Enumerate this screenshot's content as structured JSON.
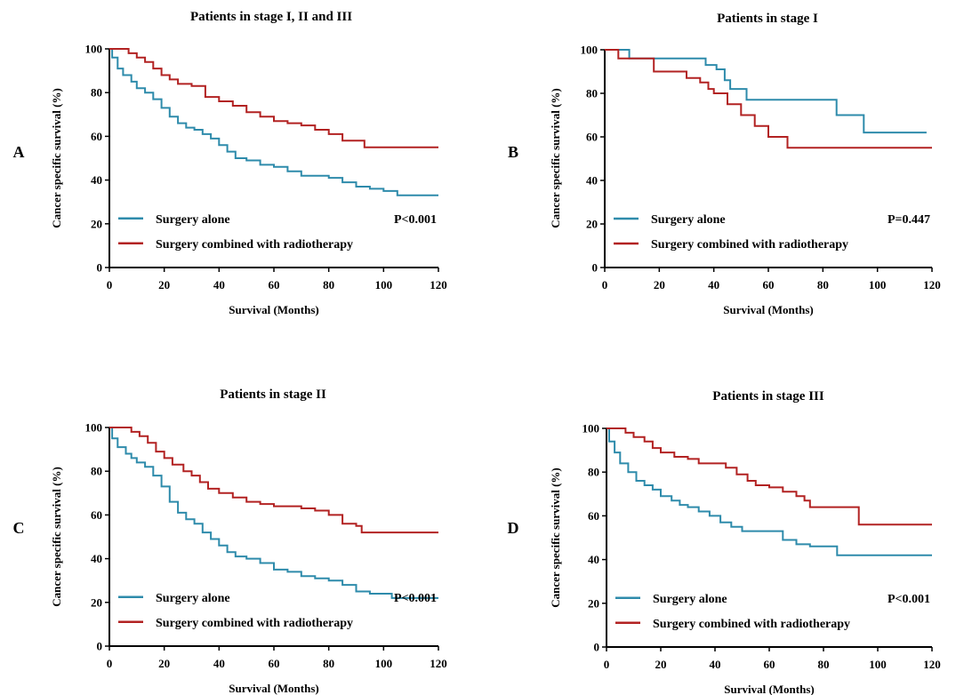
{
  "colors": {
    "surgery_alone": "#2e8bab",
    "surgery_radiotherapy": "#b22222",
    "axis": "#000000"
  },
  "chart_data": [
    {
      "type": "line",
      "panel_label": "A",
      "title": "Patients in stage I, II and III",
      "xlabel": "Survival (Months)",
      "ylabel": "Cancer specific survival (%)",
      "xlim": [
        0,
        120
      ],
      "ylim": [
        0,
        100
      ],
      "xticks": [
        "0",
        "20",
        "40",
        "60",
        "80",
        "100",
        "120"
      ],
      "yticks": [
        "0",
        "20",
        "40",
        "60",
        "80",
        "100"
      ],
      "p_value": "P<0.001",
      "legend_placement": "bottom-left",
      "series": [
        {
          "name": "Surgery alone",
          "color": "#2e8bab",
          "x": [
            0,
            1,
            3,
            5,
            8,
            10,
            13,
            16,
            19,
            22,
            25,
            28,
            31,
            34,
            37,
            40,
            43,
            46,
            50,
            55,
            60,
            65,
            70,
            75,
            80,
            85,
            90,
            95,
            100,
            105,
            110,
            120
          ],
          "y": [
            100,
            96,
            91,
            88,
            85,
            82,
            80,
            77,
            73,
            69,
            66,
            64,
            63,
            61,
            59,
            56,
            53,
            50,
            49,
            47,
            46,
            44,
            42,
            42,
            41,
            39,
            37,
            36,
            35,
            33,
            33,
            33
          ]
        },
        {
          "name": "Surgery combined with radiotherapy",
          "color": "#b22222",
          "x": [
            0,
            4,
            7,
            10,
            13,
            16,
            19,
            22,
            25,
            30,
            35,
            40,
            45,
            50,
            55,
            60,
            65,
            70,
            75,
            80,
            85,
            90,
            93,
            100,
            110,
            120
          ],
          "y": [
            100,
            100,
            98,
            96,
            94,
            91,
            88,
            86,
            84,
            83,
            78,
            76,
            74,
            71,
            69,
            67,
            66,
            65,
            63,
            61,
            58,
            58,
            55,
            55,
            55,
            55
          ]
        }
      ]
    },
    {
      "type": "line",
      "panel_label": "B",
      "title": "Patients in stage I",
      "xlabel": "Survival (Months)",
      "ylabel": "Cancer specific survival (%)",
      "xlim": [
        0,
        120
      ],
      "ylim": [
        0,
        100
      ],
      "xticks": [
        "0",
        "20",
        "40",
        "60",
        "80",
        "100",
        "120"
      ],
      "yticks": [
        "0",
        "20",
        "40",
        "60",
        "80",
        "100"
      ],
      "p_value": "P=0.447",
      "legend_placement": "bottom-left",
      "series": [
        {
          "name": "Surgery alone",
          "color": "#2e8bab",
          "x": [
            0,
            8,
            9,
            33,
            37,
            41,
            44,
            46,
            51,
            52,
            84,
            85,
            94,
            95,
            118
          ],
          "y": [
            100,
            100,
            96,
            96,
            93,
            91,
            86,
            82,
            82,
            77,
            77,
            70,
            70,
            62,
            62
          ]
        },
        {
          "name": "Surgery combined with radiotherapy",
          "color": "#b22222",
          "x": [
            0,
            3,
            5,
            17,
            18,
            30,
            35,
            38,
            40,
            45,
            50,
            55,
            60,
            67,
            120
          ],
          "y": [
            100,
            100,
            96,
            96,
            90,
            87,
            85,
            82,
            80,
            75,
            70,
            65,
            60,
            55,
            55
          ]
        }
      ]
    },
    {
      "type": "line",
      "panel_label": "C",
      "title": "Patients in stage II",
      "xlabel": "Survival (Months)",
      "ylabel": "Cancer specific survival (%)",
      "xlim": [
        0,
        120
      ],
      "ylim": [
        0,
        100
      ],
      "xticks": [
        "0",
        "20",
        "40",
        "60",
        "80",
        "100",
        "120"
      ],
      "yticks": [
        "0",
        "20",
        "40",
        "60",
        "80",
        "100"
      ],
      "p_value": "P<0.001",
      "legend_placement": "bottom-left",
      "series": [
        {
          "name": "Surgery alone",
          "color": "#2e8bab",
          "x": [
            0,
            1,
            3,
            6,
            8,
            10,
            13,
            16,
            19,
            22,
            25,
            28,
            31,
            34,
            37,
            40,
            43,
            46,
            50,
            55,
            60,
            65,
            70,
            75,
            80,
            85,
            90,
            95,
            100,
            103,
            110,
            120
          ],
          "y": [
            100,
            95,
            91,
            88,
            86,
            84,
            82,
            78,
            73,
            66,
            61,
            58,
            56,
            52,
            49,
            46,
            43,
            41,
            40,
            38,
            35,
            34,
            32,
            31,
            30,
            28,
            25,
            24,
            24,
            22,
            22,
            22
          ]
        },
        {
          "name": "Surgery combined with radiotherapy",
          "color": "#b22222",
          "x": [
            0,
            5,
            8,
            11,
            14,
            17,
            20,
            23,
            27,
            30,
            33,
            36,
            40,
            45,
            50,
            55,
            60,
            65,
            70,
            75,
            80,
            85,
            90,
            92,
            100,
            110,
            120
          ],
          "y": [
            100,
            100,
            98,
            96,
            93,
            89,
            86,
            83,
            80,
            78,
            75,
            72,
            70,
            68,
            66,
            65,
            64,
            64,
            63,
            62,
            60,
            56,
            55,
            52,
            52,
            52,
            52
          ]
        }
      ]
    },
    {
      "type": "line",
      "panel_label": "D",
      "title": "Patients in stage III",
      "xlabel": "Survival (Months)",
      "ylabel": "Cancer specific survival (%)",
      "xlim": [
        0,
        120
      ],
      "ylim": [
        0,
        100
      ],
      "xticks": [
        "0",
        "20",
        "40",
        "60",
        "80",
        "100",
        "120"
      ],
      "yticks": [
        "0",
        "20",
        "40",
        "60",
        "80",
        "100"
      ],
      "p_value": "P<0.001",
      "legend_placement": "bottom-left",
      "series": [
        {
          "name": "Surgery alone",
          "color": "#2e8bab",
          "x": [
            0,
            1,
            3,
            5,
            8,
            11,
            14,
            17,
            20,
            24,
            27,
            30,
            34,
            38,
            42,
            46,
            50,
            55,
            60,
            65,
            70,
            75,
            80,
            85,
            90,
            100,
            110,
            120
          ],
          "y": [
            100,
            94,
            89,
            84,
            80,
            76,
            74,
            72,
            69,
            67,
            65,
            64,
            62,
            60,
            57,
            55,
            53,
            53,
            53,
            49,
            47,
            46,
            46,
            42,
            42,
            42,
            42,
            42
          ]
        },
        {
          "name": "Surgery combined with radiotherapy",
          "color": "#b22222",
          "x": [
            0,
            4,
            7,
            10,
            14,
            17,
            20,
            25,
            30,
            34,
            40,
            44,
            48,
            52,
            55,
            60,
            65,
            70,
            73,
            75,
            80,
            85,
            92,
            93,
            100,
            110,
            120
          ],
          "y": [
            100,
            100,
            98,
            96,
            94,
            91,
            89,
            87,
            86,
            84,
            84,
            82,
            79,
            76,
            74,
            73,
            71,
            69,
            67,
            64,
            64,
            64,
            64,
            56,
            56,
            56,
            56
          ]
        }
      ]
    }
  ]
}
